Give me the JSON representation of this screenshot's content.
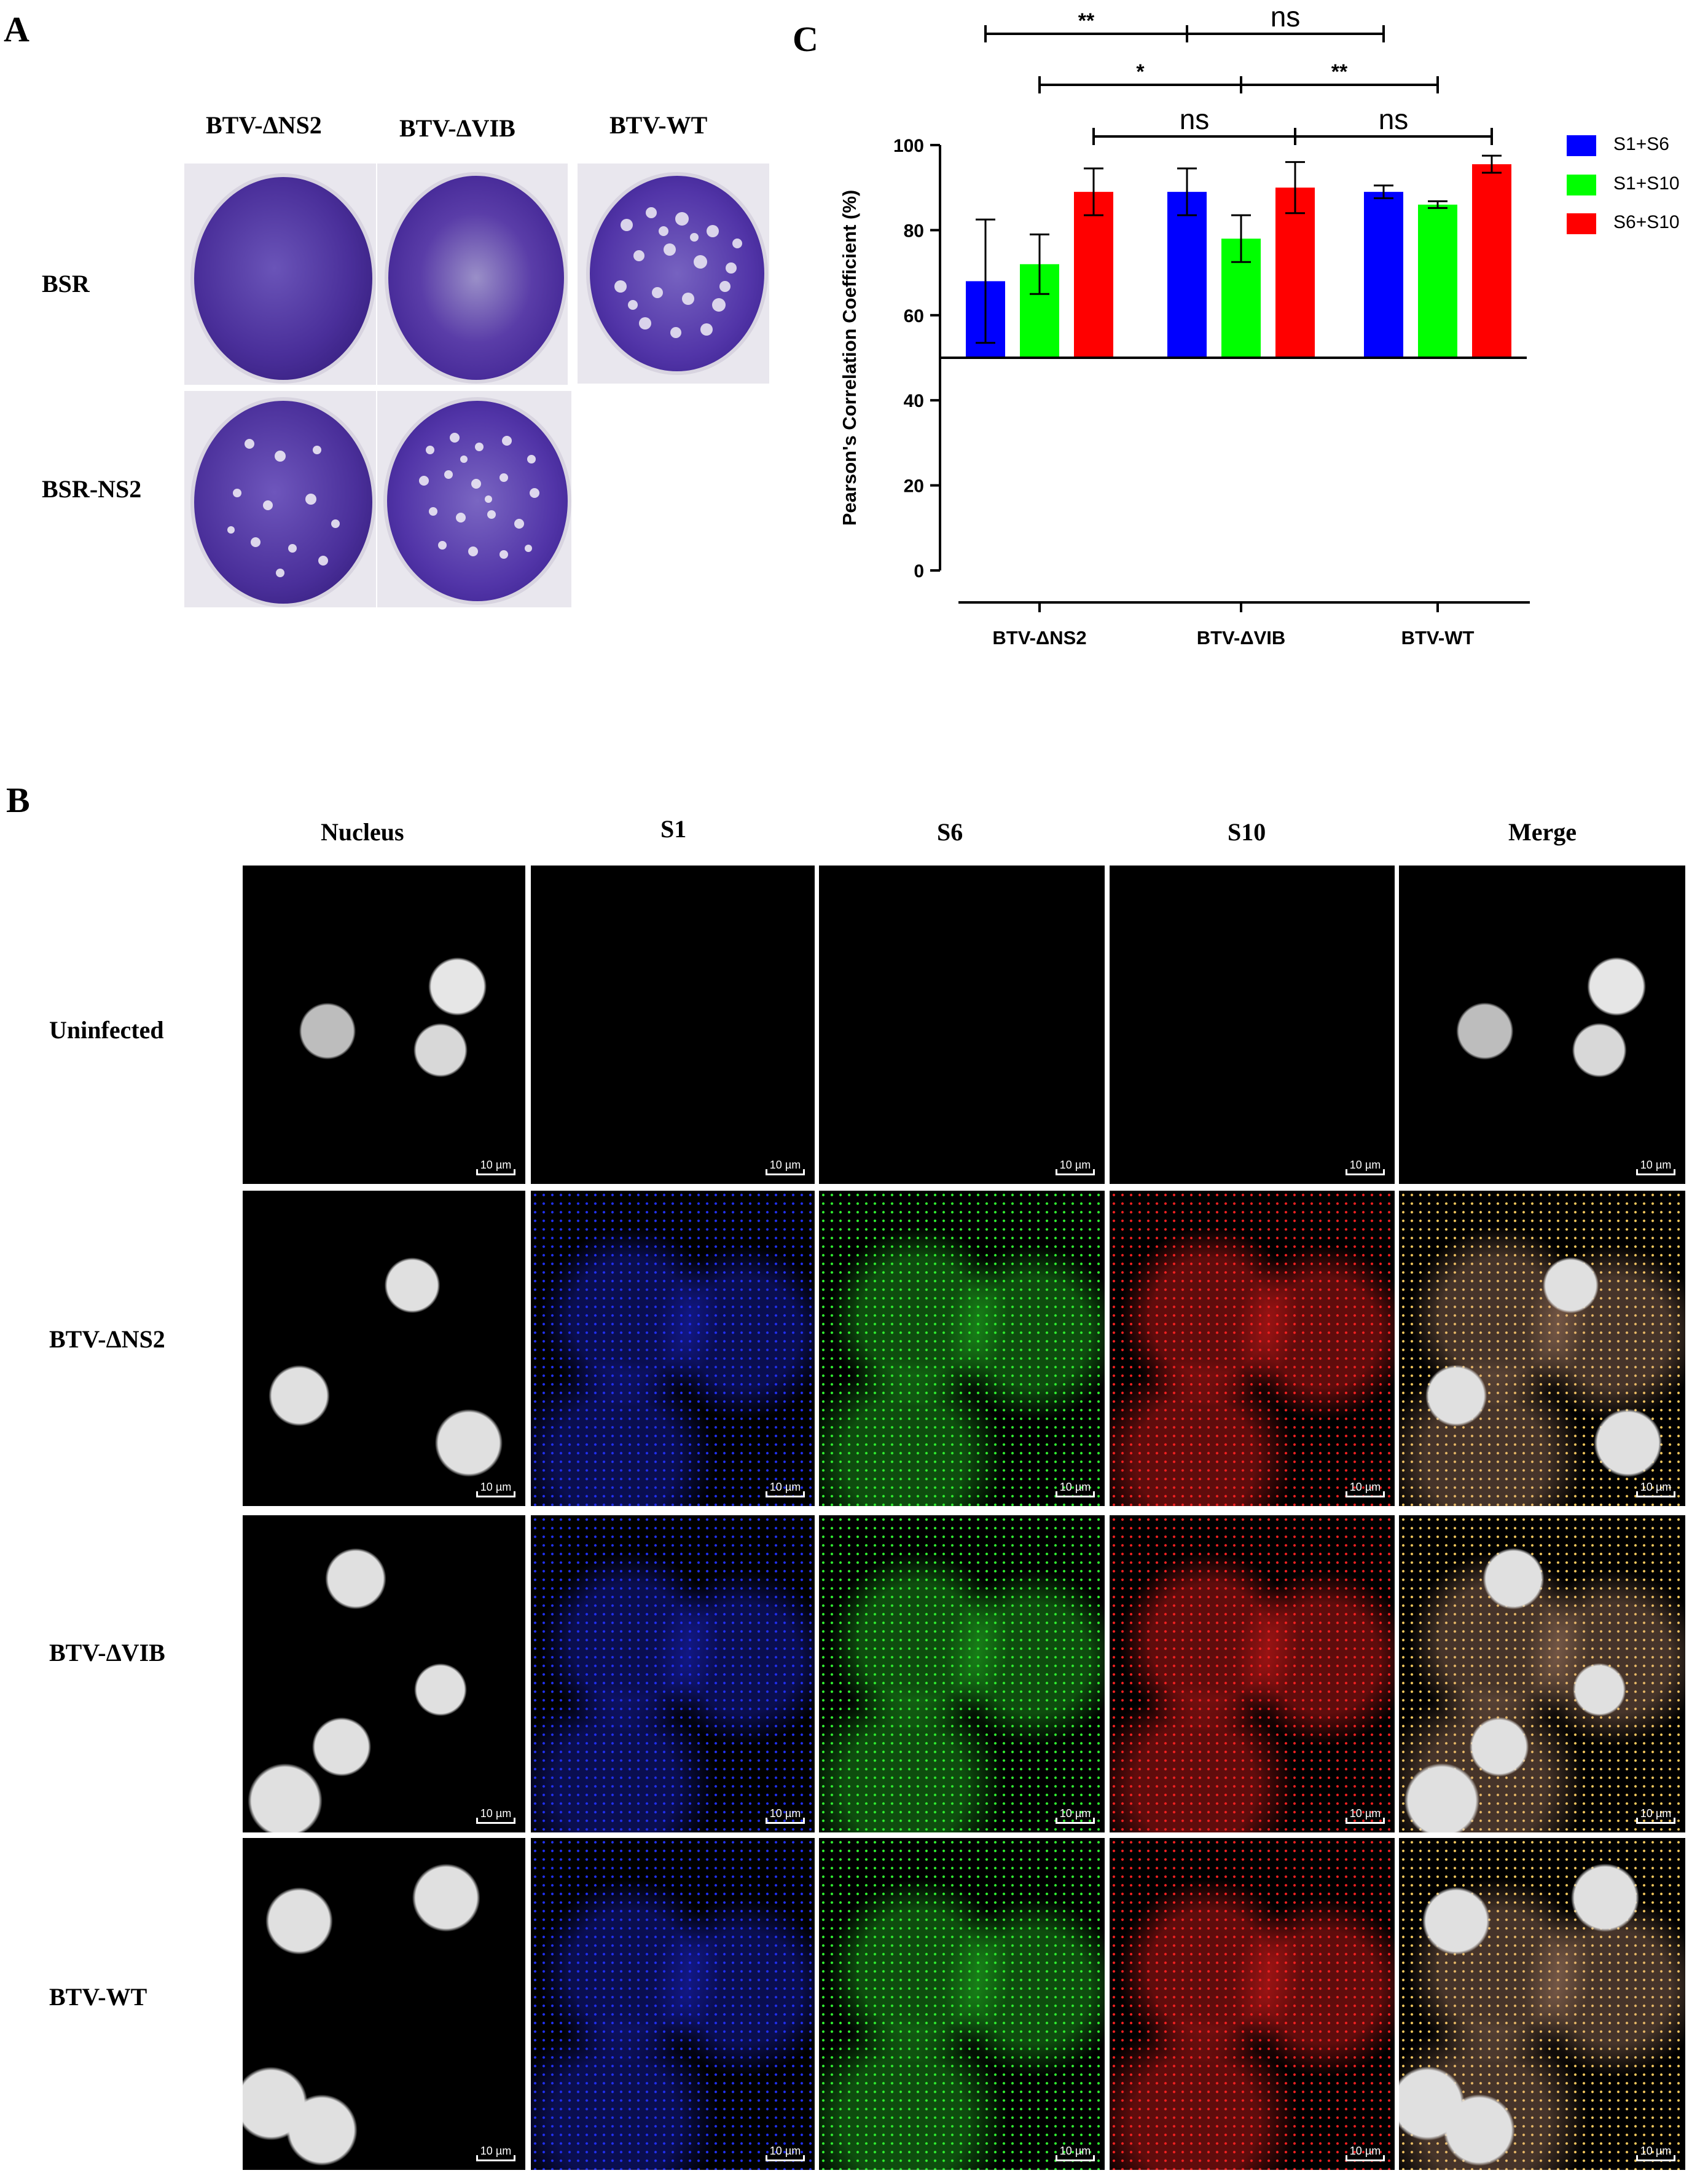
{
  "panels": {
    "a": "A",
    "b": "B",
    "c": "C"
  },
  "panel_a": {
    "columns": [
      "BTV-ΔNS2",
      "BTV-ΔVIB",
      "BTV-WT"
    ],
    "rows": [
      "BSR",
      "BSR-NS2"
    ]
  },
  "panel_b": {
    "columns": [
      "Nucleus",
      "S1",
      "S6",
      "S10",
      "Merge"
    ],
    "rows": [
      "Uninfected",
      "BTV-ΔNS2",
      "BTV-ΔVIB",
      "BTV-WT"
    ],
    "scale_bar_label": "10 µm"
  },
  "chart_data": {
    "type": "bar",
    "title": "",
    "xlabel": "",
    "ylabel": "Pearson's Correlation Coefficient (%)",
    "ylim": [
      0,
      100
    ],
    "yticks": [
      0,
      20,
      40,
      60,
      80,
      100
    ],
    "baseline": 50,
    "categories": [
      "BTV-ΔNS2",
      "BTV-ΔVIB",
      "BTV-WT"
    ],
    "legend_position": "top-right",
    "series": [
      {
        "name": "S1+S6",
        "color": "#0000ff",
        "values": [
          68,
          89,
          89
        ],
        "errors": [
          14.5,
          5.5,
          1.5
        ]
      },
      {
        "name": "S1+S10",
        "color": "#00ff00",
        "values": [
          72,
          78,
          86
        ],
        "errors": [
          7,
          5.5,
          0.8
        ]
      },
      {
        "name": "S6+S10",
        "color": "#ff0000",
        "values": [
          89,
          90,
          95.5
        ],
        "errors": [
          5.5,
          6,
          2
        ]
      }
    ],
    "significance": [
      {
        "label": "**",
        "from": "BTV-ΔNS2/S1+S6",
        "to": "BTV-ΔVIB/S1+S6"
      },
      {
        "label": "ns",
        "from": "BTV-ΔVIB/S1+S6",
        "to": "BTV-WT/S1+S6"
      },
      {
        "label": "*",
        "from": "BTV-ΔNS2/S1+S10",
        "to": "BTV-ΔVIB/S1+S10"
      },
      {
        "label": "**",
        "from": "BTV-ΔVIB/S1+S10",
        "to": "BTV-WT/S1+S10"
      },
      {
        "label": "ns",
        "from": "BTV-ΔNS2/S6+S10",
        "to": "BTV-ΔVIB/S6+S10"
      },
      {
        "label": "ns",
        "from": "BTV-ΔVIB/S6+S10",
        "to": "BTV-WT/S6+S10"
      }
    ]
  }
}
